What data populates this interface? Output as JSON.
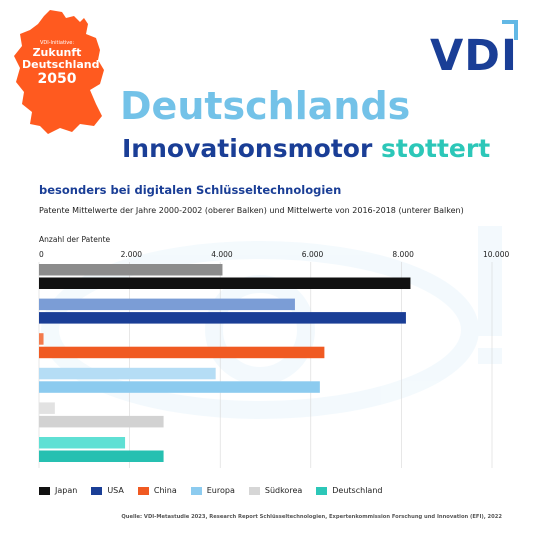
{
  "badge": {
    "small_text": "VDI-Initiative:",
    "line1": "Zukunft",
    "line2": "Deutschland",
    "line3": "2050",
    "color": "#ff5a1f"
  },
  "logo": {
    "text": "VDI",
    "color": "#1a3e96",
    "accent_color": "#62b8e5"
  },
  "headline": {
    "line1": "Deutschlands",
    "line2_main": "Innovationsmotor ",
    "line2_accent": "stottert"
  },
  "subtitle": "besonders bei digitalen Schlüsseltechnologien",
  "description": "Patente Mittelwerte der Jahre 2000-2002 (oberer Balken) und Mittelwerte von 2016-2018 (unterer Balken)",
  "chart_data": {
    "type": "bar",
    "orientation": "horizontal",
    "axis_title": "Anzahl der Patente",
    "xlim": [
      0,
      10000
    ],
    "ticks": [
      0,
      2000,
      4000,
      6000,
      8000,
      10000
    ],
    "tick_labels": [
      "0",
      "2.000",
      "4.000",
      "6.000",
      "8.000",
      "10.000"
    ],
    "grid": true,
    "legend_position": "bottom",
    "series_labels": [
      "2000-2002 (oberer Balken)",
      "2016-2018 (unterer Balken)"
    ],
    "categories": [
      {
        "name": "Japan",
        "legend_color": "#111111",
        "upper_color": "#8c8c8c",
        "lower_color": "#111111",
        "values": [
          4050,
          8200
        ]
      },
      {
        "name": "USA",
        "legend_color": "#1a3e96",
        "upper_color": "#7b9dd6",
        "lower_color": "#1a3e96",
        "values": [
          5650,
          8100
        ]
      },
      {
        "name": "China",
        "legend_color": "#f05a22",
        "upper_color": "#f37a4c",
        "lower_color": "#f05a22",
        "values": [
          100,
          6300
        ]
      },
      {
        "name": "Europa",
        "legend_color": "#8ccbef",
        "upper_color": "#b5ddf5",
        "lower_color": "#8ccbef",
        "values": [
          3900,
          6200
        ]
      },
      {
        "name": "Südkorea",
        "legend_color": "#d6d6d6",
        "upper_color": "#e2e2e2",
        "lower_color": "#d2d2d2",
        "values": [
          350,
          2750
        ]
      },
      {
        "name": "Deutschland",
        "legend_color": "#2cc7b8",
        "upper_color": "#5fe0d4",
        "lower_color": "#26c0b1",
        "values": [
          1900,
          2750
        ]
      }
    ]
  },
  "source": "Quelle: VDI-Metastudie 2023, Research Report Schlüsseltechnologien, Expertenkommission Forschung und Innovation (EFI), 2022"
}
